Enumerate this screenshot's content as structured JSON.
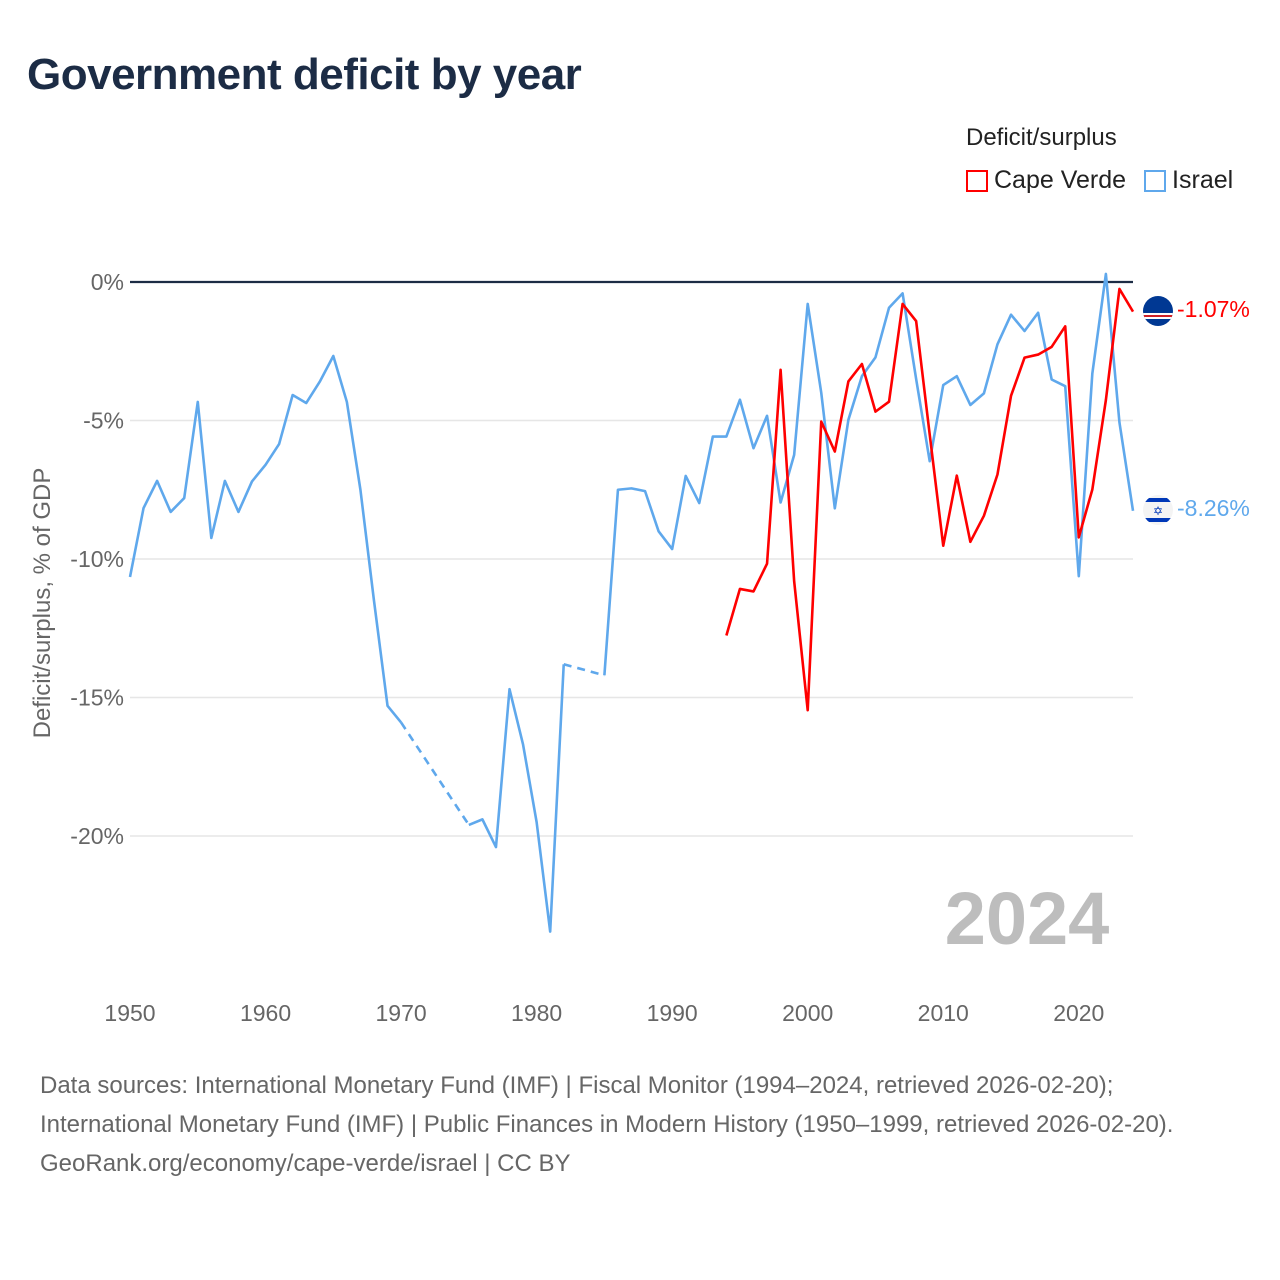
{
  "title": "Government deficit by year",
  "legend": {
    "title": "Deficit/surplus",
    "items": [
      {
        "label": "Cape Verde",
        "color": "#ff0000"
      },
      {
        "label": "Israel",
        "color": "#5fa8ec"
      }
    ]
  },
  "watermark_year": "2024",
  "end_labels": {
    "cape_verde": "-1.07%",
    "israel": "-8.26%"
  },
  "footer": {
    "line1": "Data sources: International Monetary Fund (IMF) | Fiscal Monitor (1994–2024, retrieved 2026-02-20); International Monetary Fund (IMF) | Public Finances in Modern History (1950–1999, retrieved 2026-02-20).",
    "line2": "GeoRank.org/economy/cape-verde/israel | CC BY"
  },
  "chart_data": {
    "type": "line",
    "title": "Government deficit by year",
    "xlabel": "",
    "ylabel": "Deficit/surplus, % of GDP",
    "xlim": [
      1950,
      2024
    ],
    "ylim": [
      -24,
      0.5
    ],
    "xticks": [
      1950,
      1960,
      1970,
      1980,
      1990,
      2000,
      2010,
      2020
    ],
    "xtick_labels": [
      "1950",
      "1960",
      "1970",
      "1980",
      "1990",
      "2000",
      "2010",
      "2020"
    ],
    "yticks": [
      0,
      -5,
      -10,
      -15,
      -20
    ],
    "ytick_labels": [
      "0%",
      "-5%",
      "-10%",
      "-15%",
      "-20%"
    ],
    "grid": true,
    "legend_position": "top-right",
    "series": [
      {
        "name": "Israel",
        "color": "#5fa8ec",
        "start_year": 1950,
        "values": [
          -10.65,
          -8.16,
          -7.18,
          -8.3,
          -7.8,
          -4.33,
          -9.24,
          -7.18,
          -8.3,
          -7.2,
          -6.6,
          -5.85,
          -4.08,
          -4.37,
          -3.6,
          -2.67,
          -4.33,
          -7.5,
          -11.5,
          -15.3,
          -15.9,
          null,
          null,
          null,
          null,
          -19.6,
          -19.4,
          -20.4,
          -14.7,
          -16.7,
          -19.5,
          -23.45,
          -13.8,
          null,
          null,
          -14.2,
          -7.5,
          -7.45,
          -7.55,
          -9.0,
          -9.64,
          -7.0,
          -7.98,
          -5.58,
          -5.58,
          -4.25,
          -6.0,
          -4.83,
          -7.96,
          -6.24,
          -0.79,
          -4.0,
          -8.17,
          -4.98,
          -3.4,
          -2.72,
          -0.93,
          -0.41,
          -3.5,
          -6.47,
          -3.72,
          -3.4,
          -4.44,
          -4.02,
          -2.25,
          -1.18,
          -1.77,
          -1.11,
          -3.52,
          -3.76,
          -10.62,
          -3.3,
          0.29,
          -5.07,
          -8.26
        ]
      },
      {
        "name": "Cape Verde",
        "color": "#ff0000",
        "start_year": 1994,
        "values": [
          -12.76,
          -11.08,
          -11.17,
          -10.17,
          -3.17,
          -10.8,
          -15.46,
          -5.04,
          -6.12,
          -3.59,
          -2.96,
          -4.68,
          -4.32,
          -0.79,
          -1.41,
          -5.5,
          -9.52,
          -6.99,
          -9.38,
          -8.44,
          -6.95,
          -4.11,
          -2.73,
          -2.62,
          -2.34,
          -1.6,
          -9.22,
          -7.49,
          -4.26,
          -0.25,
          -1.07
        ]
      }
    ]
  }
}
